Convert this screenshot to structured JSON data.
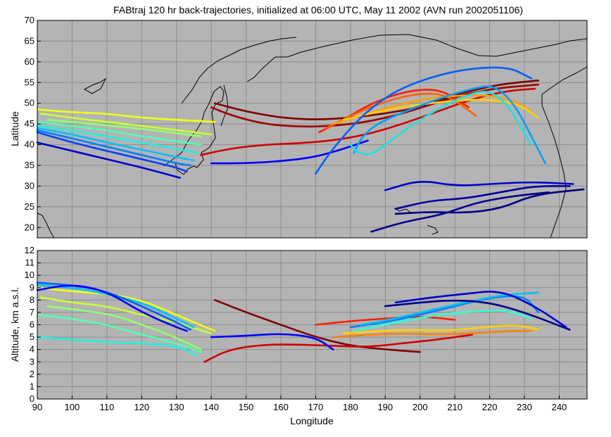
{
  "title": "FABtraj 120 hr back-trajectories, initialized at 06:00 UTC, May 11 2002 (AVN run 2002051106)",
  "colors": {
    "background": "#b3b3b3",
    "axis_bg": "#b4b4b4",
    "grid": "#8c8c8c",
    "coast": "#000000",
    "palette_jet": [
      "#00008f",
      "#0000ff",
      "#0060ff",
      "#00c0ff",
      "#30ffcf",
      "#90ff70",
      "#efff10",
      "#ffb000",
      "#ff5000",
      "#cf0000",
      "#800000"
    ]
  },
  "chart_data": [
    {
      "type": "line",
      "panel": "map",
      "title": "FABtraj 120 hr back-trajectories, initialized at 06:00 UTC, May 11 2002 (AVN run 2002051106)",
      "xlabel": "",
      "ylabel": "Latitude",
      "xlim": [
        90,
        248
      ],
      "ylim": [
        17.5,
        70
      ],
      "yticks": [
        20,
        25,
        30,
        35,
        40,
        45,
        50,
        55,
        60,
        65,
        70
      ],
      "xticks": [
        90,
        100,
        110,
        120,
        130,
        140,
        150,
        160,
        170,
        180,
        190,
        200,
        210,
        220,
        230,
        240
      ],
      "grid": true,
      "series": [
        {
          "color": "#800000",
          "x": [
            141,
            150,
            160,
            170,
            180,
            190,
            200,
            210,
            222,
            234
          ],
          "y": [
            50,
            48,
            46.5,
            46,
            46.5,
            47.5,
            49,
            52,
            54.5,
            55.5
          ]
        },
        {
          "color": "#a00000",
          "x": [
            140,
            146,
            155,
            165,
            175,
            185,
            195,
            208,
            220,
            234
          ],
          "y": [
            49,
            47,
            45,
            44.3,
            44.5,
            45.5,
            47.5,
            51,
            53.5,
            54.5
          ]
        },
        {
          "color": "#cf0000",
          "x": [
            137,
            145,
            155,
            165,
            175,
            185,
            195,
            205,
            215,
            225,
            233
          ],
          "y": [
            37.5,
            39,
            40,
            40.3,
            41,
            42.5,
            45,
            48,
            51,
            53,
            53.5
          ]
        },
        {
          "color": "#ff2000",
          "x": [
            171,
            178,
            186,
            196,
            206,
            214
          ],
          "y": [
            43,
            46,
            50,
            53,
            53.5,
            49
          ]
        },
        {
          "color": "#ff6000",
          "x": [
            173,
            180,
            190,
            200,
            208,
            216
          ],
          "y": [
            44,
            47,
            50.5,
            52.5,
            52,
            47
          ]
        },
        {
          "color": "#ffa000",
          "x": [
            175,
            185,
            195,
            205,
            215,
            225,
            232
          ],
          "y": [
            45,
            47.5,
            50,
            51.5,
            52,
            51.5,
            48
          ]
        },
        {
          "color": "#ffd000",
          "x": [
            178,
            188,
            198,
            208,
            218,
            228,
            234
          ],
          "y": [
            46,
            48,
            49.5,
            50.5,
            51,
            50,
            46.5
          ]
        },
        {
          "color": "#efff10",
          "x": [
            90,
            100,
            110,
            120,
            130,
            141
          ],
          "y": [
            48.5,
            47.8,
            47.5,
            46.5,
            46,
            45.5
          ]
        },
        {
          "color": "#c8ff30",
          "x": [
            91,
            100,
            110,
            120,
            130,
            140
          ],
          "y": [
            47.5,
            46.5,
            45.5,
            44.5,
            43.5,
            42.5
          ]
        },
        {
          "color": "#90ff70",
          "x": [
            93,
            102,
            112,
            120,
            128,
            137
          ],
          "y": [
            46,
            45.3,
            44.5,
            43.8,
            43,
            42
          ]
        },
        {
          "color": "#50ffb0",
          "x": [
            90,
            100,
            110,
            120,
            130,
            137
          ],
          "y": [
            45.5,
            44.5,
            43.5,
            42,
            40.8,
            40
          ]
        },
        {
          "color": "#20f0e0",
          "x": [
            90,
            100,
            110,
            120,
            130,
            136
          ],
          "y": [
            44.5,
            43.5,
            42,
            40.5,
            39,
            38
          ]
        },
        {
          "color": "#00c0ff",
          "x": [
            90,
            100,
            110,
            120,
            130,
            135
          ],
          "y": [
            44,
            42.5,
            40.5,
            38.8,
            37,
            36.2
          ]
        },
        {
          "color": "#0080ff",
          "x": [
            90,
            100,
            110,
            120,
            130,
            134
          ],
          "y": [
            43.5,
            41.5,
            39.5,
            37.5,
            35.5,
            35
          ]
        },
        {
          "color": "#0040ff",
          "x": [
            90,
            100,
            110,
            120,
            130,
            133
          ],
          "y": [
            43,
            40.5,
            38.5,
            36.5,
            34.5,
            33.5
          ]
        },
        {
          "color": "#0000cf",
          "x": [
            90,
            100,
            110,
            120,
            131
          ],
          "y": [
            40.5,
            38.5,
            36.5,
            34.5,
            32
          ]
        },
        {
          "color": "#0000ff",
          "x": [
            140,
            150,
            160,
            170,
            178,
            185
          ],
          "y": [
            35.5,
            35.5,
            36,
            37,
            39,
            41
          ]
        },
        {
          "color": "#0060ff",
          "x": [
            170,
            174,
            180,
            186,
            195,
            210,
            225,
            232
          ],
          "y": [
            33,
            38,
            44,
            49,
            54,
            58,
            59,
            56
          ]
        },
        {
          "color": "#00a0ff",
          "x": [
            181,
            183,
            186,
            190,
            200,
            212,
            224,
            236
          ],
          "y": [
            38,
            41.5,
            44,
            46,
            49.5,
            53,
            55,
            35.5
          ]
        },
        {
          "color": "#20e0e0",
          "x": [
            180,
            182,
            186,
            190,
            198,
            210,
            222,
            232
          ],
          "y": [
            40,
            38,
            37.5,
            40,
            45,
            51,
            54,
            40
          ]
        },
        {
          "color": "#0000cf",
          "x": [
            190,
            200,
            210,
            220,
            232,
            244
          ],
          "y": [
            29,
            31.5,
            30,
            30.5,
            31,
            30.5
          ]
        },
        {
          "color": "#0000a0",
          "x": [
            193,
            203,
            213,
            223,
            233,
            243
          ],
          "y": [
            24.5,
            26.5,
            27,
            28.5,
            30,
            30
          ]
        },
        {
          "color": "#000090",
          "x": [
            186,
            196,
            206,
            216,
            226,
            237
          ],
          "y": [
            19,
            21.5,
            23,
            26,
            27.5,
            28.5
          ]
        },
        {
          "color": "#000080",
          "x": [
            193,
            203,
            213,
            223,
            233,
            247
          ],
          "y": [
            23.3,
            23.8,
            23.5,
            24.5,
            28,
            29.2
          ]
        }
      ]
    },
    {
      "type": "line",
      "panel": "altitude",
      "xlabel": "Longitude",
      "ylabel": "Altitude, km a.s.l.",
      "xlim": [
        90,
        248
      ],
      "ylim": [
        0,
        12
      ],
      "yticks": [
        0,
        1,
        2,
        3,
        4,
        5,
        6,
        7,
        8,
        9,
        10,
        11,
        12
      ],
      "xticks": [
        90,
        100,
        110,
        120,
        130,
        140,
        150,
        160,
        170,
        180,
        190,
        200,
        210,
        220,
        230,
        240
      ],
      "grid": true,
      "series": [
        {
          "color": "#800000",
          "x": [
            141,
            150,
            160,
            170,
            180,
            190,
            200
          ],
          "y": [
            8,
            7,
            6,
            5,
            4.3,
            4,
            3.8
          ]
        },
        {
          "color": "#cf0000",
          "x": [
            138,
            145,
            155,
            165,
            175,
            185,
            195,
            205,
            215
          ],
          "y": [
            3,
            4,
            4.4,
            4.4,
            4.3,
            4.2,
            4.5,
            4.8,
            5.2
          ]
        },
        {
          "color": "#ff2000",
          "x": [
            170,
            180,
            190,
            200,
            210
          ],
          "y": [
            6,
            6.3,
            6.5,
            6.7,
            6.4
          ]
        },
        {
          "color": "#ff8000",
          "x": [
            175,
            185,
            195,
            205,
            215,
            225,
            232
          ],
          "y": [
            5,
            5.2,
            5.3,
            5.2,
            5.3,
            5.5,
            5.5
          ]
        },
        {
          "color": "#ffd000",
          "x": [
            178,
            188,
            198,
            208,
            218,
            228,
            234
          ],
          "y": [
            5.3,
            5.5,
            5.6,
            5.5,
            5.8,
            6,
            5.6
          ]
        },
        {
          "color": "#efff10",
          "x": [
            90,
            100,
            110,
            120,
            130,
            141
          ],
          "y": [
            9,
            8.7,
            8.5,
            8,
            6.8,
            5.5
          ]
        },
        {
          "color": "#c8ff30",
          "x": [
            91,
            100,
            110,
            120,
            130,
            140
          ],
          "y": [
            8.2,
            7.8,
            7.5,
            6.8,
            6.2,
            5.3
          ]
        },
        {
          "color": "#90ff70",
          "x": [
            93,
            102,
            112,
            120,
            128,
            137
          ],
          "y": [
            7.5,
            7.2,
            6.8,
            6,
            5.2,
            4
          ]
        },
        {
          "color": "#50ffb0",
          "x": [
            90,
            100,
            110,
            120,
            130,
            137
          ],
          "y": [
            6.8,
            6.5,
            6,
            5.2,
            4.5,
            3.8
          ]
        },
        {
          "color": "#20f0e0",
          "x": [
            90,
            100,
            110,
            120,
            130,
            136
          ],
          "y": [
            5,
            4.8,
            4.6,
            4.5,
            4.3,
            3.5
          ]
        },
        {
          "color": "#00c0ff",
          "x": [
            90,
            100,
            110,
            120,
            130,
            135
          ],
          "y": [
            9.2,
            9,
            8.5,
            7.8,
            6.5,
            5.8
          ]
        },
        {
          "color": "#0060ff",
          "x": [
            90,
            100,
            110,
            120,
            130,
            134
          ],
          "y": [
            9.4,
            9.2,
            8.7,
            7.5,
            6.2,
            5.6
          ]
        },
        {
          "color": "#0000ff",
          "x": [
            90,
            100,
            110,
            120,
            130,
            133
          ],
          "y": [
            8.8,
            9.3,
            8.7,
            7,
            5.8,
            5.5
          ]
        },
        {
          "color": "#0000ff",
          "x": [
            140,
            150,
            160,
            170,
            175
          ],
          "y": [
            5,
            5.1,
            5.3,
            5,
            4
          ]
        },
        {
          "color": "#0080ff",
          "x": [
            180,
            190,
            200,
            210,
            220,
            230,
            234
          ],
          "y": [
            5.8,
            6.2,
            6.8,
            7.5,
            8.2,
            8.4,
            7
          ]
        },
        {
          "color": "#00c0ff",
          "x": [
            183,
            193,
            203,
            213,
            223,
            234
          ],
          "y": [
            6,
            6.5,
            7.2,
            7.8,
            8.4,
            8.6
          ]
        },
        {
          "color": "#00008f",
          "x": [
            190,
            200,
            210,
            220,
            230,
            243
          ],
          "y": [
            7.5,
            7.8,
            8,
            7.8,
            7,
            5.6
          ]
        },
        {
          "color": "#0000cf",
          "x": [
            193,
            203,
            213,
            223,
            233,
            242
          ],
          "y": [
            7.8,
            8.2,
            8.5,
            8.8,
            7.5,
            5.8
          ]
        },
        {
          "color": "#30ffcf",
          "x": [
            181,
            186,
            195,
            205,
            215,
            225,
            232
          ],
          "y": [
            5.5,
            5.8,
            6.3,
            6.8,
            7.1,
            7.2,
            6.5
          ]
        }
      ]
    }
  ]
}
